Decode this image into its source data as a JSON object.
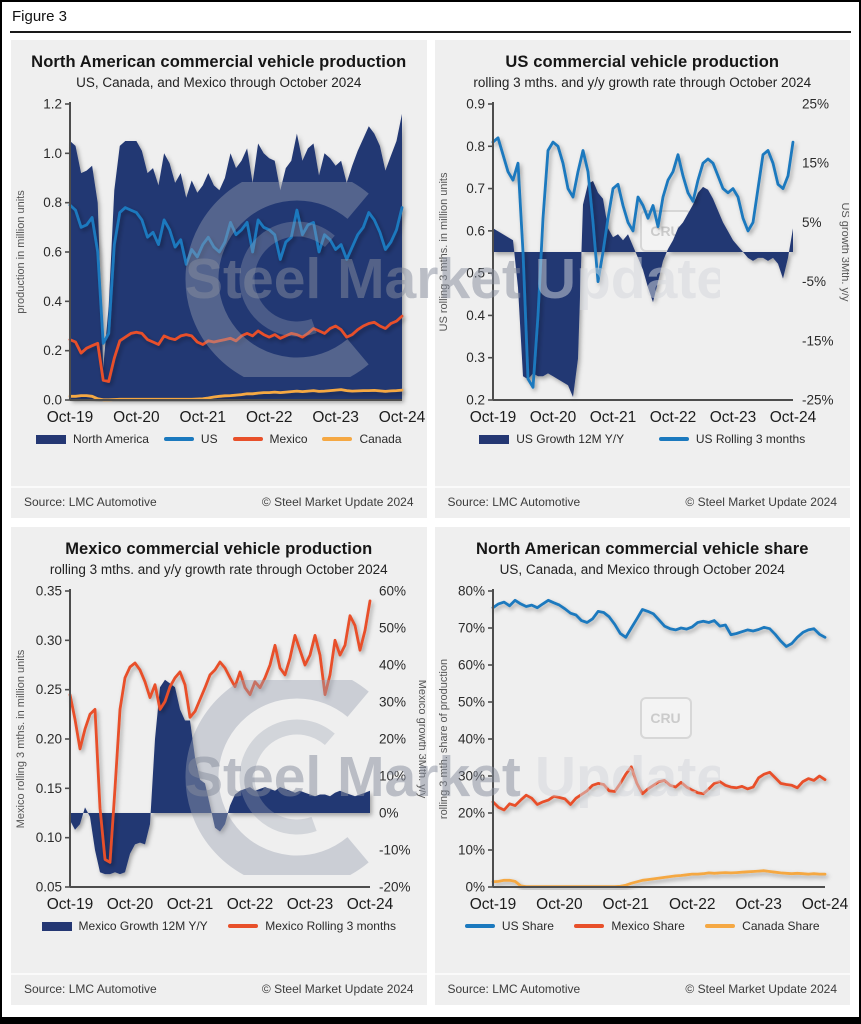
{
  "figure_label": "Figure 3",
  "watermark": {
    "part1": "Steel Market",
    "part2": "Update",
    "cru": "CRU"
  },
  "palette": {
    "navy": "#243773",
    "blue": "#1B79BE",
    "orange": "#E8502A",
    "amber": "#F5A843",
    "panel_bg": "#EFEFEF",
    "axis_line": "#4D4D4D",
    "tick_text": "#2B2B2B",
    "axis_title_text": "#555555"
  },
  "footer": {
    "source": "Source: LMC Automotive",
    "copyright": "© Steel Market Update 2024"
  },
  "x_axis": {
    "ticks": [
      "Oct-19",
      "Oct-20",
      "Oct-21",
      "Oct-22",
      "Oct-23",
      "Oct-24"
    ]
  },
  "chart_data": [
    {
      "type": "area+line",
      "title": "North American commercial vehicle production",
      "subtitle": "US, Canada, and Mexico through October 2024",
      "left_axis": {
        "label": "production in million units",
        "min": 0,
        "max": 1.2,
        "step": 0.2,
        "decimals": 1,
        "suffix": ""
      },
      "right_axis": null,
      "cru": false,
      "series": [
        {
          "name": "North America",
          "kind": "area",
          "axis": "left",
          "color": "navy",
          "values": [
            1.05,
            1.03,
            0.92,
            0.93,
            0.95,
            0.8,
            0.13,
            0.38,
            0.85,
            1.03,
            1.05,
            1.05,
            1.05,
            1.01,
            0.92,
            0.94,
            0.87,
            1.0,
            0.96,
            0.88,
            0.92,
            0.82,
            0.89,
            0.84,
            0.87,
            0.92,
            0.87,
            0.85,
            0.9,
            1.0,
            0.94,
            0.97,
            1.02,
            0.88,
            1.04,
            1.0,
            0.98,
            0.97,
            0.85,
            0.94,
            0.97,
            1.08,
            0.97,
            1.02,
            1.04,
            0.91,
            1.0,
            0.98,
            0.95,
            0.97,
            0.88,
            0.95,
            1.01,
            1.06,
            1.11,
            1.08,
            1.03,
            0.93,
            0.99,
            1.05,
            1.16
          ]
        },
        {
          "name": "US",
          "kind": "line",
          "axis": "left",
          "color": "blue",
          "values": [
            0.79,
            0.77,
            0.7,
            0.71,
            0.74,
            0.6,
            0.23,
            0.27,
            0.63,
            0.76,
            0.78,
            0.77,
            0.76,
            0.73,
            0.66,
            0.68,
            0.63,
            0.73,
            0.69,
            0.62,
            0.65,
            0.55,
            0.61,
            0.58,
            0.63,
            0.66,
            0.62,
            0.6,
            0.64,
            0.72,
            0.67,
            0.69,
            0.72,
            0.6,
            0.73,
            0.7,
            0.69,
            0.67,
            0.57,
            0.64,
            0.66,
            0.77,
            0.67,
            0.71,
            0.72,
            0.6,
            0.67,
            0.65,
            0.61,
            0.63,
            0.57,
            0.62,
            0.67,
            0.7,
            0.76,
            0.73,
            0.68,
            0.61,
            0.64,
            0.69,
            0.78
          ]
        },
        {
          "name": "Mexico",
          "kind": "line",
          "axis": "left",
          "color": "orange",
          "values": [
            0.245,
            0.235,
            0.19,
            0.21,
            0.22,
            0.23,
            0.08,
            0.075,
            0.17,
            0.24,
            0.255,
            0.27,
            0.275,
            0.27,
            0.245,
            0.235,
            0.225,
            0.26,
            0.25,
            0.245,
            0.26,
            0.265,
            0.26,
            0.235,
            0.225,
            0.24,
            0.235,
            0.24,
            0.245,
            0.25,
            0.24,
            0.26,
            0.27,
            0.26,
            0.28,
            0.265,
            0.255,
            0.265,
            0.25,
            0.26,
            0.27,
            0.265,
            0.255,
            0.27,
            0.29,
            0.28,
            0.27,
            0.29,
            0.3,
            0.285,
            0.255,
            0.265,
            0.285,
            0.3,
            0.31,
            0.315,
            0.3,
            0.29,
            0.31,
            0.32,
            0.34
          ]
        },
        {
          "name": "Canada",
          "kind": "line",
          "axis": "left",
          "color": "amber",
          "values": [
            0.015,
            0.015,
            0.018,
            0.018,
            0.015,
            0.005,
            0.001,
            0.001,
            0.002,
            0.003,
            0.003,
            0.003,
            0.003,
            0.003,
            0.003,
            0.003,
            0.003,
            0.003,
            0.003,
            0.003,
            0.003,
            0.003,
            0.003,
            0.004,
            0.005,
            0.008,
            0.012,
            0.015,
            0.017,
            0.018,
            0.02,
            0.022,
            0.025,
            0.025,
            0.028,
            0.03,
            0.03,
            0.032,
            0.03,
            0.032,
            0.034,
            0.036,
            0.034,
            0.036,
            0.038,
            0.035,
            0.036,
            0.038,
            0.04,
            0.042,
            0.038,
            0.036,
            0.037,
            0.038,
            0.038,
            0.039,
            0.037,
            0.035,
            0.037,
            0.038,
            0.04
          ]
        }
      ]
    },
    {
      "type": "area+line",
      "title": "US commercial vehicle production",
      "subtitle": "rolling 3 mths. and y/y growth rate through October 2024",
      "left_axis": {
        "label": "US rolling 3 mths. in million units",
        "min": 0.2,
        "max": 0.9,
        "step": 0.1,
        "decimals": 1,
        "suffix": ""
      },
      "right_axis": {
        "label": "US growth 3Mth. y/y",
        "min": -25,
        "max": 25,
        "step": 10,
        "decimals": 0,
        "suffix": "%"
      },
      "cru": true,
      "series": [
        {
          "name": "US Growth 12M Y/Y",
          "kind": "area",
          "axis": "right",
          "color": "navy",
          "values": [
            4,
            3.5,
            3,
            2.5,
            2,
            -6,
            -21,
            -21.5,
            -20.5,
            -21,
            -21,
            -20.5,
            -21,
            -21.5,
            -22,
            -22.5,
            -24.5,
            -18,
            8,
            11.5,
            12,
            10,
            9,
            4,
            2.5,
            3,
            2,
            3,
            1,
            -1,
            -3,
            -6,
            -8.5,
            -5,
            -1.5,
            0.5,
            2,
            4,
            5,
            6.5,
            8,
            10,
            11,
            10.5,
            9,
            7,
            5,
            3.5,
            2,
            1,
            0,
            -1,
            -1.5,
            -1,
            -1,
            -1.5,
            -1,
            -2,
            -4.5,
            -1,
            4
          ]
        },
        {
          "name": "US Rolling 3 months",
          "kind": "line",
          "axis": "left",
          "color": "blue",
          "values": [
            0.81,
            0.82,
            0.78,
            0.74,
            0.72,
            0.76,
            0.55,
            0.25,
            0.23,
            0.4,
            0.63,
            0.79,
            0.81,
            0.8,
            0.76,
            0.7,
            0.68,
            0.74,
            0.79,
            0.74,
            0.62,
            0.48,
            0.55,
            0.63,
            0.7,
            0.71,
            0.66,
            0.62,
            0.6,
            0.68,
            0.66,
            0.63,
            0.66,
            0.61,
            0.68,
            0.72,
            0.74,
            0.78,
            0.73,
            0.69,
            0.67,
            0.72,
            0.76,
            0.77,
            0.76,
            0.73,
            0.7,
            0.69,
            0.7,
            0.68,
            0.63,
            0.6,
            0.62,
            0.7,
            0.78,
            0.79,
            0.76,
            0.71,
            0.7,
            0.73,
            0.81
          ]
        }
      ]
    },
    {
      "type": "area+line",
      "title": "Mexico commercial vehicle production",
      "subtitle": "rolling 3 mths. and y/y growth rate through October 2024",
      "left_axis": {
        "label": "Mexico rolling 3 mths. in million units",
        "min": 0.05,
        "max": 0.35,
        "step": 0.05,
        "decimals": 2,
        "suffix": ""
      },
      "right_axis": {
        "label": "Mexico growth 3Mth. y/y",
        "min": -20,
        "max": 60,
        "step": 10,
        "decimals": 0,
        "suffix": "%"
      },
      "cru": false,
      "series": [
        {
          "name": "Mexico Growth 12M Y/Y",
          "kind": "area",
          "axis": "right",
          "color": "navy",
          "values": [
            -2,
            -4.5,
            -3,
            1.5,
            -1,
            -10,
            -16,
            -16.5,
            -16.5,
            -16,
            -16.5,
            -16,
            -11,
            -8.5,
            -8,
            -8.5,
            -3,
            20,
            34,
            36,
            35,
            34,
            28,
            25,
            25,
            15,
            9,
            8,
            2,
            -4,
            -5,
            -3,
            2,
            5,
            6,
            6.5,
            7,
            6,
            6.5,
            7,
            6.5,
            6,
            7,
            6.5,
            6,
            5.5,
            6,
            5.5,
            5,
            4.5,
            5,
            5,
            4.5,
            5.5,
            6,
            5.5,
            5,
            4.5,
            5,
            5.5,
            6
          ]
        },
        {
          "name": "Mexico Rolling 3 months",
          "kind": "line",
          "axis": "left",
          "color": "orange",
          "values": [
            0.245,
            0.22,
            0.19,
            0.21,
            0.225,
            0.23,
            0.13,
            0.078,
            0.075,
            0.15,
            0.23,
            0.262,
            0.273,
            0.277,
            0.27,
            0.258,
            0.242,
            0.255,
            0.23,
            0.238,
            0.253,
            0.262,
            0.268,
            0.255,
            0.222,
            0.228,
            0.24,
            0.252,
            0.265,
            0.27,
            0.278,
            0.272,
            0.262,
            0.253,
            0.268,
            0.252,
            0.245,
            0.258,
            0.252,
            0.262,
            0.275,
            0.295,
            0.272,
            0.265,
            0.282,
            0.305,
            0.29,
            0.275,
            0.285,
            0.305,
            0.285,
            0.245,
            0.265,
            0.3,
            0.285,
            0.295,
            0.325,
            0.315,
            0.29,
            0.31,
            0.34
          ]
        }
      ]
    },
    {
      "type": "line",
      "title": "North American commercial vehicle share",
      "subtitle": "US, Canada, and Mexico through October 2024",
      "left_axis": {
        "label": "rolling 3 mth. share of production",
        "min": 0,
        "max": 80,
        "step": 10,
        "decimals": 0,
        "suffix": "%"
      },
      "right_axis": null,
      "cru": true,
      "series": [
        {
          "name": "US Share",
          "kind": "line",
          "axis": "left",
          "color": "blue",
          "values": [
            75.5,
            76.5,
            77.0,
            76.0,
            77.5,
            76.5,
            75.8,
            76.2,
            75.5,
            76.5,
            77.5,
            76.8,
            76.2,
            75.2,
            74.0,
            73.5,
            72.0,
            71.5,
            72.5,
            74.5,
            74.2,
            73.0,
            71.0,
            68.5,
            67.5,
            70.0,
            72.5,
            75.0,
            74.5,
            73.8,
            72.2,
            70.5,
            69.8,
            69.5,
            70.0,
            69.7,
            70.3,
            71.5,
            71.8,
            71.5,
            72.0,
            70.5,
            70.8,
            68.2,
            68.5,
            69.0,
            69.5,
            69.2,
            69.6,
            70.2,
            69.8,
            68.3,
            66.5,
            65.0,
            65.8,
            67.5,
            68.8,
            69.5,
            69.8,
            68.3,
            67.5
          ]
        },
        {
          "name": "Mexico Share",
          "kind": "line",
          "axis": "left",
          "color": "orange",
          "values": [
            23.0,
            21.5,
            20.8,
            22.5,
            22.0,
            23.5,
            24.8,
            24.0,
            22.3,
            23.0,
            23.5,
            24.5,
            24.2,
            23.8,
            22.3,
            24.0,
            25.0,
            26.0,
            27.5,
            28.0,
            27.7,
            26.0,
            25.8,
            28.0,
            30.5,
            32.5,
            28.0,
            25.2,
            26.5,
            27.5,
            28.5,
            28.8,
            27.5,
            27.0,
            28.3,
            27.0,
            26.2,
            25.5,
            25.2,
            26.5,
            28.0,
            28.5,
            27.5,
            27.0,
            26.8,
            27.2,
            26.5,
            27.0,
            29.5,
            30.5,
            31.0,
            29.5,
            28.0,
            27.7,
            27.5,
            26.8,
            28.5,
            29.3,
            28.8,
            30.0,
            29.0
          ]
        },
        {
          "name": "Canada Share",
          "kind": "line",
          "axis": "left",
          "color": "amber",
          "values": [
            1.4,
            1.5,
            1.8,
            1.8,
            1.5,
            0.3,
            0.1,
            0.1,
            0.1,
            0.1,
            0.1,
            0.1,
            0.1,
            0.1,
            0.1,
            0.1,
            0.1,
            0.1,
            0.1,
            0.1,
            0.1,
            0.1,
            0.1,
            0.2,
            0.5,
            1.0,
            1.4,
            1.8,
            2.0,
            2.2,
            2.4,
            2.6,
            2.8,
            3.0,
            3.1,
            3.3,
            3.5,
            3.5,
            3.6,
            3.8,
            3.7,
            3.8,
            3.9,
            3.8,
            3.9,
            4.0,
            4.1,
            4.2,
            4.3,
            4.4,
            4.2,
            4.0,
            3.8,
            3.7,
            3.6,
            3.7,
            3.6,
            3.5,
            3.6,
            3.5,
            3.5
          ]
        }
      ]
    }
  ]
}
